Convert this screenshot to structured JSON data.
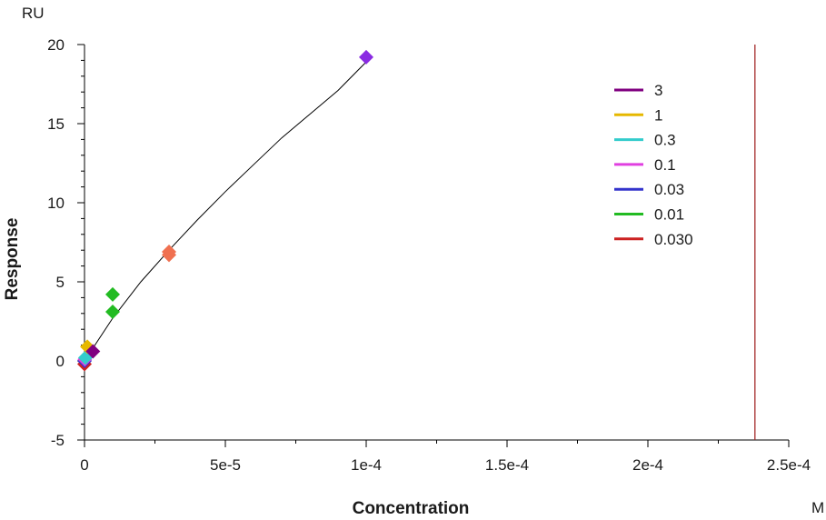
{
  "chart_data": {
    "type": "scatter",
    "xlabel": "Concentration",
    "ylabel": "Response",
    "x_unit": "M",
    "y_unit": "RU",
    "xlim": [
      0,
      0.00025
    ],
    "ylim": [
      -5,
      20
    ],
    "x_ticks": [
      {
        "value": 0,
        "label": "0"
      },
      {
        "value": 5e-05,
        "label": "5e-5"
      },
      {
        "value": 0.0001,
        "label": "1e-4"
      },
      {
        "value": 0.00015,
        "label": "1.5e-4"
      },
      {
        "value": 0.0002,
        "label": "2e-4"
      },
      {
        "value": 0.00025,
        "label": "2.5e-4"
      }
    ],
    "y_ticks": [
      {
        "value": -5,
        "label": "-5"
      },
      {
        "value": 0,
        "label": "0"
      },
      {
        "value": 5,
        "label": "5"
      },
      {
        "value": 10,
        "label": "10"
      },
      {
        "value": 15,
        "label": "15"
      },
      {
        "value": 20,
        "label": "20"
      }
    ],
    "grid": false,
    "legend_position": "right",
    "series": [
      {
        "name": "3",
        "color": "#800080",
        "points": [
          [
            3e-06,
            0.6
          ]
        ]
      },
      {
        "name": "1",
        "color": "#E6B800",
        "points": [
          [
            1e-06,
            0.9
          ]
        ]
      },
      {
        "name": "0.3",
        "color": "#33CCCC",
        "points": [
          [
            3e-07,
            0.2
          ]
        ]
      },
      {
        "name": "0.1",
        "color": "#E040E0",
        "points": [
          [
            1e-07,
            0.1
          ]
        ]
      },
      {
        "name": "0.03",
        "color": "#3333CC",
        "points": [
          [
            3e-08,
            0.0
          ]
        ]
      },
      {
        "name": "0.01",
        "color": "#22BB22",
        "points": [
          [
            1e-05,
            4.2
          ],
          [
            1e-05,
            3.1
          ]
        ]
      },
      {
        "name": "0.030",
        "color": "#CC2222",
        "points": [
          [
            0.0,
            -0.2
          ]
        ]
      }
    ],
    "extra_points": [
      {
        "color": "#8A2BE2",
        "points": [
          [
            0.0001,
            19.2
          ]
        ]
      },
      {
        "color": "#F07050",
        "points": [
          [
            3e-05,
            6.9
          ],
          [
            3e-05,
            6.7
          ]
        ]
      }
    ],
    "fit_curve": {
      "color": "#000000",
      "points": [
        [
          0,
          0
        ],
        [
          1e-05,
          2.7
        ],
        [
          2e-05,
          5.0
        ],
        [
          3e-05,
          7.0
        ],
        [
          4e-05,
          8.9
        ],
        [
          5e-05,
          10.7
        ],
        [
          6e-05,
          12.4
        ],
        [
          7e-05,
          14.1
        ],
        [
          8e-05,
          15.6
        ],
        [
          9e-05,
          17.1
        ],
        [
          0.0001,
          18.9
        ]
      ]
    },
    "vertical_line": {
      "value": 0.000238,
      "color": "#A52A2A"
    }
  }
}
